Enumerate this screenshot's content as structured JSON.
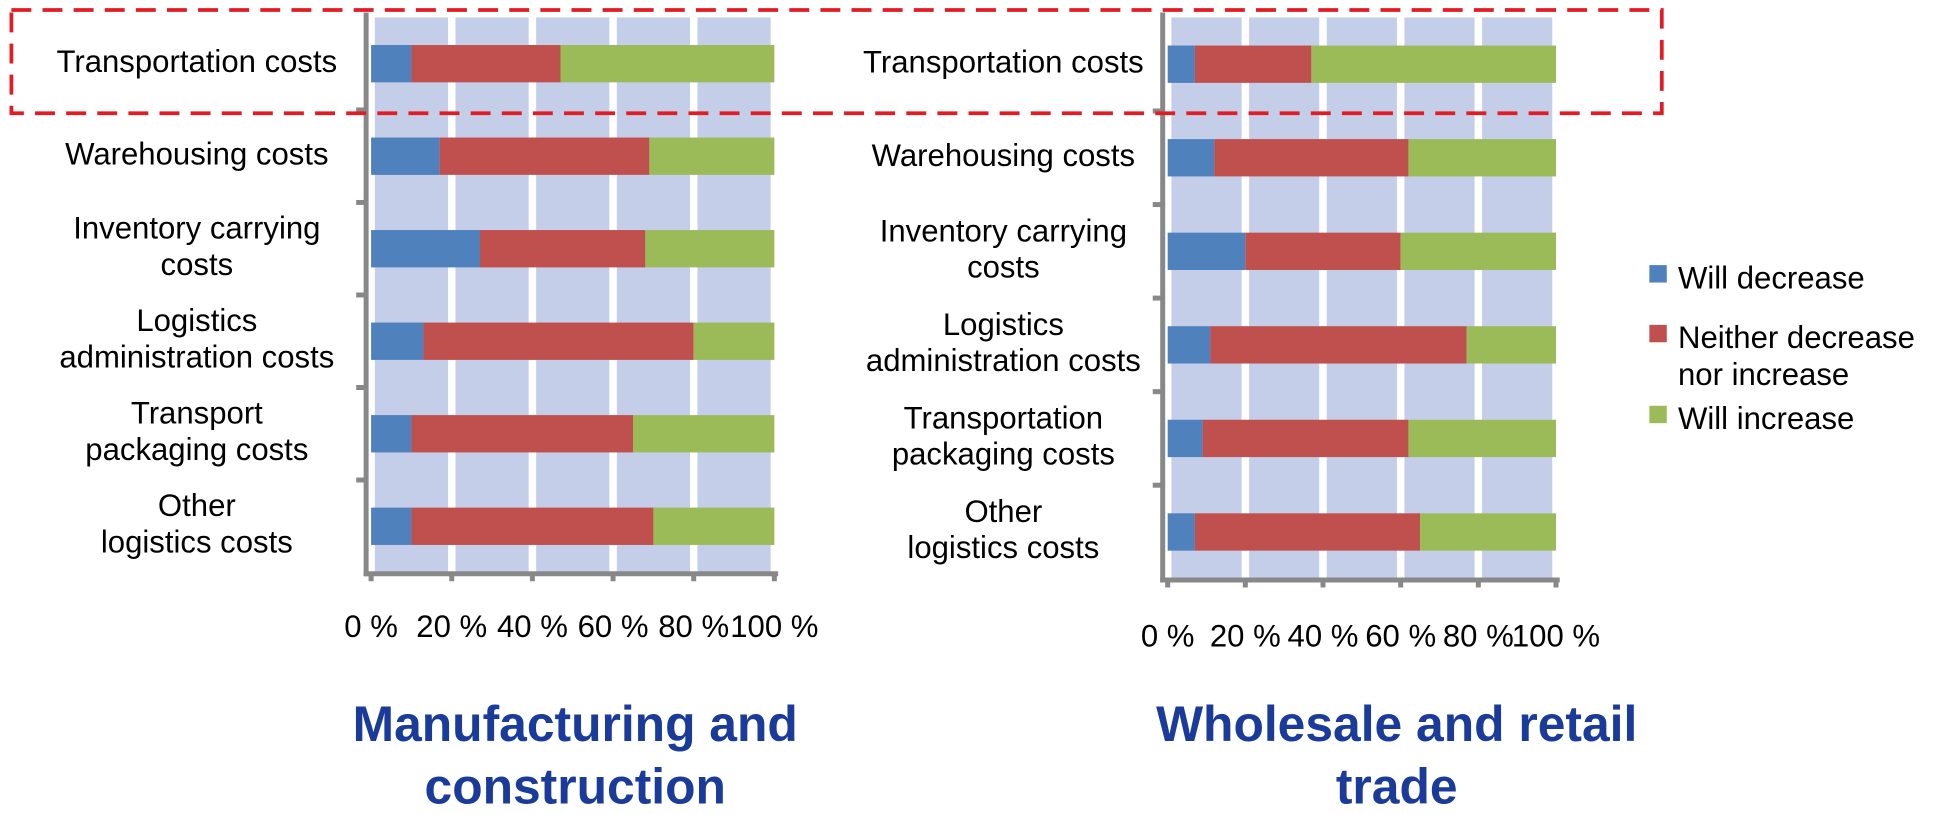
{
  "chart_data": [
    {
      "type": "stacked-bar-horizontal",
      "title": "Manufacturing and\nconstruction",
      "categories": [
        "Transportation costs",
        "Warehousing costs",
        "Inventory carrying\ncosts",
        "Logistics\nadministration costs",
        "Transport\npackaging costs",
        "Other\nlogistics costs"
      ],
      "series": [
        {
          "name": "Will decrease",
          "color": "#4f81bd",
          "values": [
            10,
            17,
            27,
            13,
            10,
            10
          ]
        },
        {
          "name": "Neither decrease\nnor increase",
          "color": "#c0504d",
          "values": [
            37,
            52,
            41,
            67,
            55,
            60
          ]
        },
        {
          "name": "Will increase",
          "color": "#9bbb59",
          "values": [
            53,
            31,
            32,
            20,
            35,
            30
          ]
        }
      ],
      "xlim": [
        0,
        100
      ],
      "xticks": [
        {
          "value": 0,
          "label": "0 %"
        },
        {
          "value": 20,
          "label": "20 %"
        },
        {
          "value": 40,
          "label": "40 %"
        },
        {
          "value": 60,
          "label": "60 %"
        },
        {
          "value": 80,
          "label": "80 %"
        },
        {
          "value": 100,
          "label": "100 %"
        }
      ],
      "grid": true,
      "background": "#c5cee9",
      "legend": false
    },
    {
      "type": "stacked-bar-horizontal",
      "title": "Wholesale and retail\ntrade",
      "categories": [
        "Transportation costs",
        "Warehousing costs",
        "Inventory carrying\ncosts",
        "Logistics\nadministration costs",
        "Transportation\npackaging costs",
        "Other\nlogistics costs"
      ],
      "series": [
        {
          "name": "Will decrease",
          "color": "#4f81bd",
          "values": [
            7,
            12,
            20,
            11,
            9,
            7
          ]
        },
        {
          "name": "Neither decrease\nnor increase",
          "color": "#c0504d",
          "values": [
            30,
            50,
            40,
            66,
            53,
            58
          ]
        },
        {
          "name": "Will increase",
          "color": "#9bbb59",
          "values": [
            63,
            38,
            40,
            23,
            38,
            35
          ]
        }
      ],
      "xlim": [
        0,
        100
      ],
      "xticks": [
        {
          "value": 0,
          "label": "0 %"
        },
        {
          "value": 20,
          "label": "20 %"
        },
        {
          "value": 40,
          "label": "40 %"
        },
        {
          "value": 60,
          "label": "60 %"
        },
        {
          "value": 80,
          "label": "80 %"
        },
        {
          "value": 100,
          "label": "100 %"
        }
      ],
      "grid": true,
      "background": "#c5cee9",
      "legend": "right"
    }
  ]
}
